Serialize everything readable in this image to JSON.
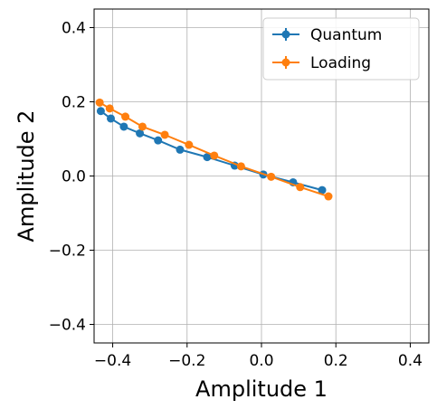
{
  "chart_data": {
    "type": "line",
    "title": "",
    "xlabel": "Amplitude 1",
    "ylabel": "Amplitude 2",
    "xlim": [
      -0.45,
      0.45
    ],
    "ylim": [
      -0.45,
      0.45
    ],
    "xticks": [
      -0.4,
      -0.2,
      0.0,
      0.2,
      0.4
    ],
    "yticks": [
      -0.4,
      -0.2,
      0.0,
      0.2,
      0.4
    ],
    "xtick_labels": [
      "−0.4",
      "−0.2",
      "0.0",
      "0.2",
      "0.4"
    ],
    "ytick_labels": [
      "−0.4",
      "−0.2",
      "0.0",
      "0.2",
      "0.4"
    ],
    "grid": true,
    "legend_position": "top-right",
    "series": [
      {
        "name": "Quantum",
        "color": "#1f77b4",
        "x": [
          -0.432,
          -0.405,
          -0.37,
          -0.327,
          -0.278,
          -0.219,
          -0.146,
          -0.072,
          0.005,
          0.085,
          0.163
        ],
        "y": [
          0.175,
          0.155,
          0.133,
          0.115,
          0.096,
          0.071,
          0.051,
          0.028,
          0.004,
          -0.017,
          -0.038
        ]
      },
      {
        "name": "Loading",
        "color": "#ff7f0e",
        "x": [
          -0.435,
          -0.408,
          -0.366,
          -0.32,
          -0.26,
          -0.195,
          -0.127,
          -0.055,
          0.026,
          0.104,
          0.18
        ],
        "y": [
          0.198,
          0.182,
          0.16,
          0.133,
          0.111,
          0.084,
          0.055,
          0.026,
          -0.002,
          -0.03,
          -0.055
        ]
      }
    ]
  }
}
